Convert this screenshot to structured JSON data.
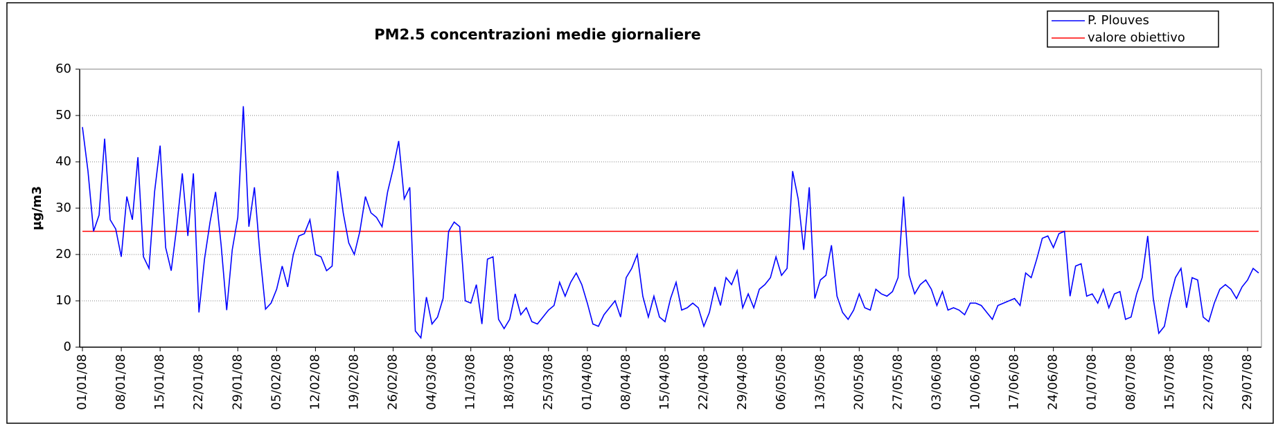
{
  "chart_data": {
    "type": "line",
    "title": "PM2.5 concentrazioni medie giornaliere",
    "y_label": "µg/m3",
    "categories": [
      "01/01/08",
      null,
      null,
      null,
      null,
      null,
      null,
      "08/01/08",
      null,
      null,
      null,
      null,
      null,
      null,
      "15/01/08",
      null,
      null,
      null,
      null,
      null,
      null,
      "22/01/08",
      null,
      null,
      null,
      null,
      null,
      null,
      "29/01/08",
      null,
      null,
      null,
      null,
      null,
      null,
      "05/02/08",
      null,
      null,
      null,
      null,
      null,
      null,
      "12/02/08",
      null,
      null,
      null,
      null,
      null,
      null,
      "19/02/08",
      null,
      null,
      null,
      null,
      null,
      null,
      "26/02/08",
      null,
      null,
      null,
      null,
      null,
      null,
      "04/03/08",
      null,
      null,
      null,
      null,
      null,
      null,
      "11/03/08",
      null,
      null,
      null,
      null,
      null,
      null,
      "18/03/08",
      null,
      null,
      null,
      null,
      null,
      null,
      "25/03/08",
      null,
      null,
      null,
      null,
      null,
      null,
      "01/04/08",
      null,
      null,
      null,
      null,
      null,
      null,
      "08/04/08",
      null,
      null,
      null,
      null,
      null,
      null,
      "15/04/08",
      null,
      null,
      null,
      null,
      null,
      null,
      "22/04/08",
      null,
      null,
      null,
      null,
      null,
      null,
      "29/04/08",
      null,
      null,
      null,
      null,
      null,
      null,
      "06/05/08",
      null,
      null,
      null,
      null,
      null,
      null,
      "13/05/08",
      null,
      null,
      null,
      null,
      null,
      null,
      "20/05/08",
      null,
      null,
      null,
      null,
      null,
      null,
      "27/05/08",
      null,
      null,
      null,
      null,
      null,
      null,
      "03/06/08",
      null,
      null,
      null,
      null,
      null,
      null,
      "10/06/08",
      null,
      null,
      null,
      null,
      null,
      null,
      "17/06/08",
      null,
      null,
      null,
      null,
      null,
      null,
      "24/06/08",
      null,
      null,
      null,
      null,
      null,
      null,
      "01/07/08",
      null,
      null,
      null,
      null,
      null,
      null,
      "08/07/08",
      null,
      null,
      null,
      null,
      null,
      null,
      "15/07/08",
      null,
      null,
      null,
      null,
      null,
      null,
      "22/07/08",
      null,
      null,
      null,
      null,
      null,
      null,
      "29/07/08",
      null,
      null
    ],
    "series": [
      {
        "name": "P. Plouves",
        "color": "#0000ff",
        "values": [
          47.5,
          38,
          25,
          28.5,
          45,
          27.5,
          25.5,
          19.5,
          32.5,
          27.5,
          41,
          19.5,
          17,
          33.5,
          43.5,
          21.5,
          16.5,
          26,
          37.5,
          24,
          37.5,
          7.5,
          19,
          27,
          33.5,
          22,
          8,
          21,
          28,
          52,
          26,
          34.5,
          20,
          8.2,
          9.5,
          12.5,
          17.5,
          13,
          20,
          24,
          24.5,
          27.5,
          20,
          19.5,
          16.5,
          17.5,
          38,
          29,
          22.5,
          20,
          25,
          32.5,
          29,
          28,
          26,
          33.5,
          38.5,
          44.5,
          32,
          34.5,
          3.5,
          2,
          10.8,
          5,
          6.5,
          10.5,
          25,
          27,
          26,
          10,
          9.5,
          13.5,
          5,
          19,
          19.5,
          6,
          4,
          6,
          11.5,
          7,
          8.5,
          5.5,
          5,
          6.5,
          8,
          9,
          14,
          11,
          14,
          16,
          13.5,
          9.5,
          5,
          4.5,
          7,
          8.5,
          10,
          6.5,
          15,
          17,
          20,
          11,
          6.5,
          11,
          6.5,
          5.5,
          10.5,
          14,
          8,
          8.5,
          9.5,
          8.5,
          4.5,
          7.5,
          13,
          9,
          15,
          13.5,
          16.5,
          8.5,
          11.5,
          8.5,
          12.5,
          13.5,
          15,
          19.5,
          15.5,
          17,
          38,
          32,
          21,
          34.5,
          10.5,
          14.5,
          15.5,
          22,
          11,
          7.5,
          6,
          8,
          11.5,
          8.5,
          8,
          12.5,
          11.5,
          11,
          12,
          15,
          32.5,
          15.5,
          11.5,
          13.5,
          14.5,
          12.5,
          9,
          12,
          8,
          8.5,
          8,
          7,
          9.5,
          9.5,
          9,
          7.5,
          6,
          9,
          9.5,
          10,
          10.5,
          9,
          16,
          15,
          19,
          23.5,
          24,
          21.5,
          24.5,
          25,
          11,
          17.5,
          18,
          11,
          11.5,
          9.5,
          12.5,
          8.5,
          11.5,
          12,
          6,
          6.5,
          11.5,
          15,
          24,
          10.5,
          3,
          4.5,
          10.5,
          15,
          17,
          8.5,
          15,
          14.5,
          6.5,
          5.5,
          9.5,
          12.5,
          13.5,
          12.5,
          10.5,
          13,
          14.5,
          17,
          16
        ]
      }
    ],
    "reference_line": {
      "name": "valore obiettivo",
      "value": 25,
      "color": "#ff0000"
    },
    "ylim": [
      0,
      60
    ],
    "yticks": [
      0,
      10,
      20,
      30,
      40,
      50,
      60
    ],
    "grid": true,
    "legend": "upper right"
  }
}
